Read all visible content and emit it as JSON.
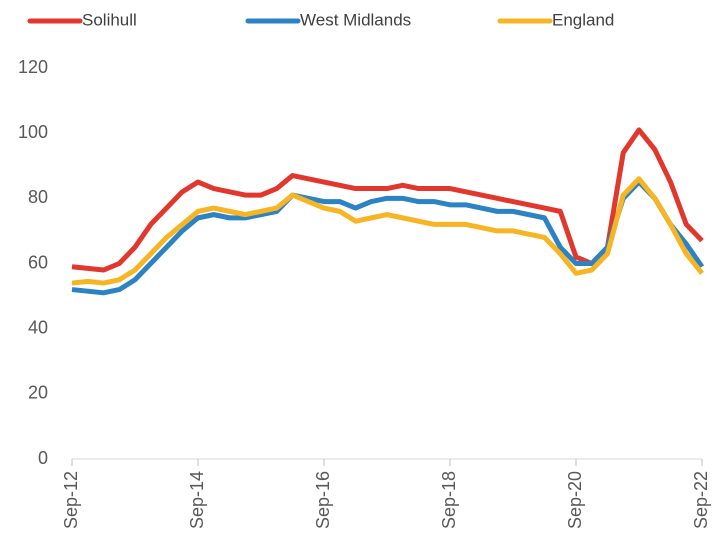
{
  "chart_data": {
    "type": "line",
    "x": [
      "2012-09",
      "2012-12",
      "2013-03",
      "2013-06",
      "2013-09",
      "2013-12",
      "2014-03",
      "2014-06",
      "2014-09",
      "2014-12",
      "2015-03",
      "2015-06",
      "2015-09",
      "2015-12",
      "2016-03",
      "2016-06",
      "2016-09",
      "2016-12",
      "2017-03",
      "2017-06",
      "2017-09",
      "2017-12",
      "2018-03",
      "2018-06",
      "2018-09",
      "2018-12",
      "2019-03",
      "2019-06",
      "2019-09",
      "2019-12",
      "2020-03",
      "2020-06",
      "2020-09",
      "2020-12",
      "2021-03",
      "2021-06",
      "2021-09",
      "2021-12",
      "2022-03",
      "2022-06",
      "2022-09"
    ],
    "series": [
      {
        "name": "Solihull",
        "color": "#e1372c",
        "values": [
          59,
          58.5,
          58,
          60,
          65,
          72,
          77,
          82,
          85,
          83,
          82,
          81,
          81,
          83,
          87,
          86,
          85,
          84,
          83,
          83,
          83,
          84,
          83,
          83,
          83,
          82,
          81,
          80,
          79,
          78,
          77,
          76,
          62,
          60,
          65,
          94,
          101,
          95,
          85,
          72,
          67
        ]
      },
      {
        "name": "West Midlands",
        "color": "#2b83c3",
        "values": [
          52,
          51.5,
          51,
          52,
          55,
          60,
          65,
          70,
          74,
          75,
          74,
          74,
          75,
          76,
          81,
          80,
          79,
          79,
          77,
          79,
          80,
          80,
          79,
          79,
          78,
          78,
          77,
          76,
          76,
          75,
          74,
          65,
          60,
          60,
          65,
          80,
          85,
          80,
          72,
          66,
          59
        ]
      },
      {
        "name": "England",
        "color": "#f7b423",
        "values": [
          54,
          54.5,
          54,
          55,
          58,
          63,
          68,
          72,
          76,
          77,
          76,
          75,
          76,
          77,
          81,
          79,
          77,
          76,
          73,
          74,
          75,
          74,
          73,
          72,
          72,
          72,
          71,
          70,
          70,
          69,
          68,
          63,
          57,
          58,
          63,
          81,
          86,
          80,
          72,
          63,
          57
        ]
      }
    ],
    "ylim": [
      0,
      120
    ],
    "yticks": [
      0,
      20,
      40,
      60,
      80,
      100,
      120
    ],
    "xlim": [
      "2012-09",
      "2022-09"
    ],
    "xticks": [
      {
        "value": "2012-09",
        "label": "Sep-12"
      },
      {
        "value": "2014-09",
        "label": "Sep-14"
      },
      {
        "value": "2016-09",
        "label": "Sep-16"
      },
      {
        "value": "2018-09",
        "label": "Sep-18"
      },
      {
        "value": "2020-09",
        "label": "Sep-20"
      },
      {
        "value": "2022-09",
        "label": "Sep-22"
      }
    ],
    "legend": "top",
    "grid": false
  }
}
